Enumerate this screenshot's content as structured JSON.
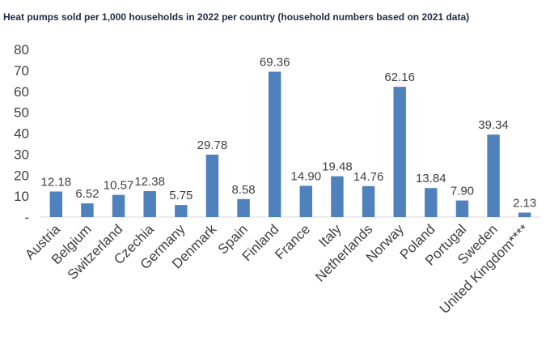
{
  "chart_data": {
    "type": "bar",
    "title": "Heat pumps sold per 1,000 households in 2022 per country (household numbers based on 2021 data)",
    "xlabel": "",
    "ylabel": "",
    "ylim": [
      0,
      80
    ],
    "yticks": [
      0,
      10,
      20,
      30,
      40,
      50,
      60,
      70,
      80
    ],
    "ytick_labels": [
      "-",
      "10",
      "20",
      "30",
      "40",
      "50",
      "60",
      "70",
      "80"
    ],
    "grid": false,
    "legend": "none",
    "bar_color": "#4f81bd",
    "categories": [
      "Austria",
      "Belgium",
      "Switzerland",
      "Czechia",
      "Germany",
      "Denmark",
      "Spain",
      "Finland",
      "France",
      "Italy",
      "Netherlands",
      "Norway",
      "Poland",
      "Portugal",
      "Sweden",
      "United Kingdom****"
    ],
    "values": [
      12.18,
      6.52,
      10.57,
      12.38,
      5.75,
      29.78,
      8.58,
      69.36,
      14.9,
      19.48,
      14.76,
      62.16,
      13.84,
      7.9,
      39.34,
      2.13
    ],
    "data_labels": [
      "12.18",
      "6.52",
      "10.57",
      "12.38",
      "5.75",
      "29.78",
      "8.58",
      "69.36",
      "14.90",
      "19.48",
      "14.76",
      "62.16",
      "13.84",
      "7.90",
      "39.34",
      "2.13"
    ]
  }
}
